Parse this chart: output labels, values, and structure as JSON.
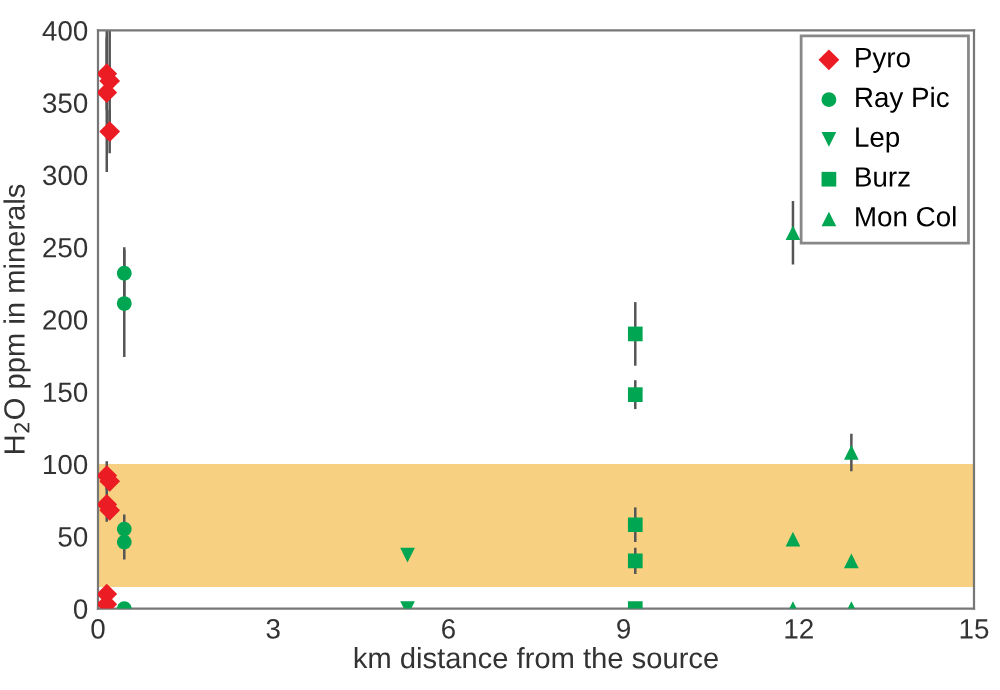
{
  "chart_data": {
    "type": "scatter",
    "xlabel": "km distance from the source",
    "ylabel": "H$_{2}$O ppm in minerals",
    "xlim": [
      0,
      15
    ],
    "xticks": [
      0,
      3,
      6,
      9,
      12,
      15
    ],
    "ylim": [
      0,
      400
    ],
    "yticks": [
      0,
      50,
      100,
      150,
      200,
      250,
      300,
      350,
      400
    ],
    "grid": false,
    "legend": "top right",
    "bands": [
      {
        "axis": "y",
        "from": 15,
        "to": 100,
        "color": "#f7d081"
      }
    ],
    "series": [
      {
        "name": "Pyro",
        "color": "#ec1c24",
        "marker": "diamond",
        "x": [
          0.15,
          0.2,
          0.15,
          0.2,
          0.15,
          0.2,
          0.15,
          0.2,
          0.15,
          0.15
        ],
        "values": [
          370,
          365,
          357,
          330,
          92,
          88,
          72,
          68,
          10,
          3
        ],
        "errors": [
          25,
          35,
          55,
          15,
          10,
          null,
          12,
          null,
          null,
          null
        ]
      },
      {
        "name": "Ray Pic",
        "color": "#00a651",
        "marker": "circle",
        "x": [
          0.45,
          0.45,
          0.45,
          0.45,
          0.45
        ],
        "values": [
          232,
          211,
          55,
          46,
          0
        ],
        "errors": [
          18,
          37,
          10,
          12,
          null
        ]
      },
      {
        "name": "Lep",
        "color": "#00a651",
        "marker": "triangle_down",
        "x": [
          5.3,
          5.3
        ],
        "values": [
          37,
          0
        ],
        "errors": [
          null,
          null
        ]
      },
      {
        "name": "Burz",
        "color": "#00a651",
        "marker": "square",
        "x": [
          9.2,
          9.2,
          9.2,
          9.2,
          9.2
        ],
        "values": [
          190,
          148,
          58,
          33,
          0
        ],
        "errors": [
          22,
          10,
          12,
          9,
          null
        ]
      },
      {
        "name": "Mon Col",
        "color": "#00a651",
        "marker": "triangle",
        "x": [
          11.9,
          11.9,
          11.9,
          12.9,
          12.9,
          12.9
        ],
        "values": [
          260,
          48,
          0,
          108,
          33,
          0
        ],
        "errors": [
          22,
          null,
          null,
          13,
          null,
          null
        ]
      }
    ]
  }
}
